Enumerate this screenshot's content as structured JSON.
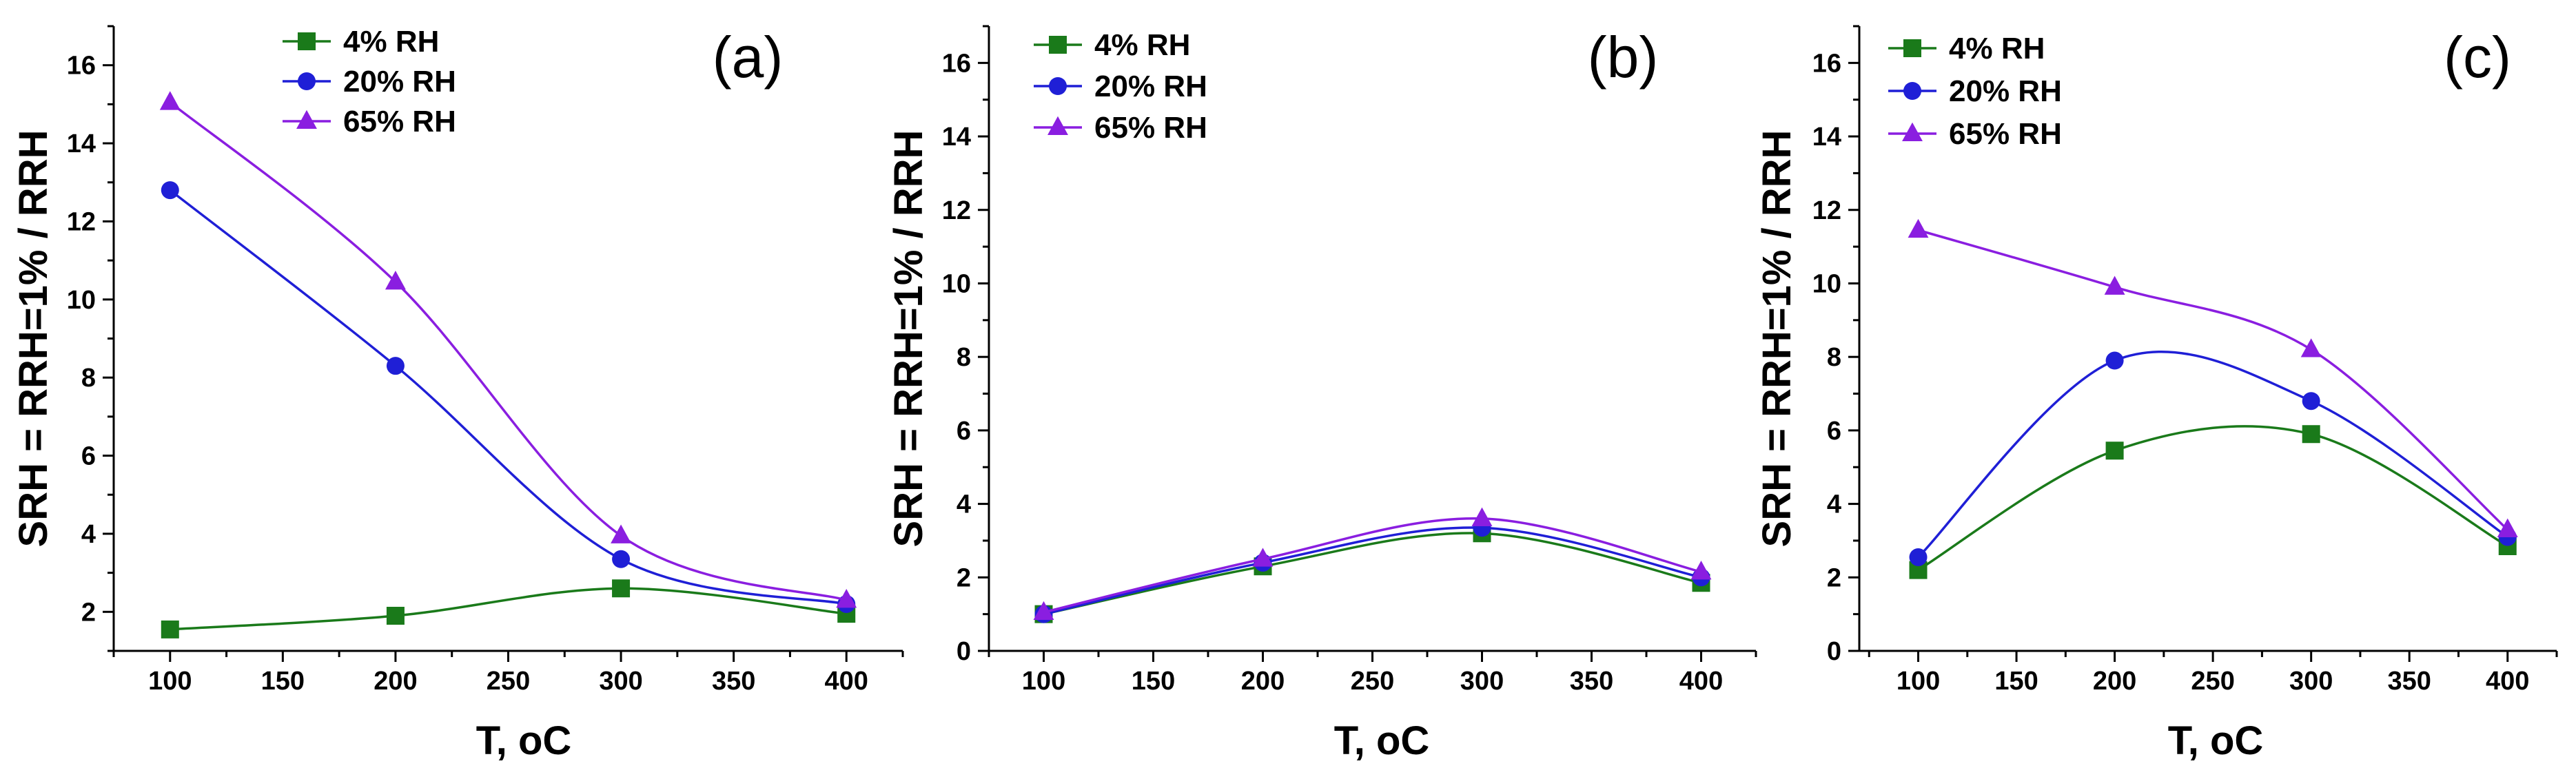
{
  "chart_data": [
    {
      "type": "line",
      "panel_label": "(a)",
      "xlabel": "T, oC",
      "ylabel": "SRH = RRH=1% / RRH",
      "x": [
        100,
        200,
        300,
        400
      ],
      "xlim": [
        75,
        425
      ],
      "ylim": [
        1,
        17
      ],
      "xticks": [
        100,
        150,
        200,
        250,
        300,
        350,
        400
      ],
      "yticks": [
        2,
        4,
        6,
        8,
        10,
        12,
        14,
        16
      ],
      "legend_position": "top-left",
      "series": [
        {
          "name": "4% RH",
          "marker": "square",
          "color": "#1a7a1a",
          "values": [
            1.55,
            1.9,
            2.6,
            1.95
          ]
        },
        {
          "name": "20% RH",
          "marker": "circle",
          "color": "#1f1fd6",
          "values": [
            12.8,
            8.3,
            3.35,
            2.2
          ]
        },
        {
          "name": "65% RH",
          "marker": "triangle",
          "color": "#8a1ee0",
          "values": [
            15.05,
            10.45,
            3.95,
            2.3
          ]
        }
      ]
    },
    {
      "type": "line",
      "panel_label": "(b)",
      "xlabel": "T, oC",
      "ylabel": "SRH = RRH=1% / RRH",
      "x": [
        100,
        200,
        300,
        400
      ],
      "xlim": [
        75,
        425
      ],
      "ylim": [
        0,
        17
      ],
      "xticks": [
        100,
        150,
        200,
        250,
        300,
        350,
        400
      ],
      "yticks": [
        0,
        2,
        4,
        6,
        8,
        10,
        12,
        14,
        16
      ],
      "legend_position": "top-left",
      "series": [
        {
          "name": "4% RH",
          "marker": "square",
          "color": "#1a7a1a",
          "values": [
            1.0,
            2.3,
            3.2,
            1.85
          ]
        },
        {
          "name": "20% RH",
          "marker": "circle",
          "color": "#1f1fd6",
          "values": [
            1.0,
            2.4,
            3.35,
            2.0
          ]
        },
        {
          "name": "65% RH",
          "marker": "triangle",
          "color": "#8a1ee0",
          "values": [
            1.05,
            2.5,
            3.6,
            2.15
          ]
        }
      ]
    },
    {
      "type": "line",
      "panel_label": "(c)",
      "xlabel": "T, oC",
      "ylabel": "SRH = RRH=1% / RRH",
      "x": [
        100,
        200,
        300,
        400
      ],
      "xlim": [
        70,
        425
      ],
      "ylim": [
        0,
        17
      ],
      "xticks": [
        100,
        150,
        200,
        250,
        300,
        350,
        400
      ],
      "yticks": [
        0,
        2,
        4,
        6,
        8,
        10,
        12,
        14,
        16
      ],
      "legend_position": "top-left",
      "series": [
        {
          "name": "4% RH",
          "marker": "square",
          "color": "#1a7a1a",
          "values": [
            2.2,
            5.45,
            5.9,
            2.85
          ]
        },
        {
          "name": "20% RH",
          "marker": "circle",
          "color": "#1f1fd6",
          "values": [
            2.55,
            7.9,
            6.8,
            3.1
          ]
        },
        {
          "name": "65% RH",
          "marker": "triangle",
          "color": "#8a1ee0",
          "values": [
            11.45,
            9.9,
            8.2,
            3.3
          ]
        }
      ]
    }
  ]
}
